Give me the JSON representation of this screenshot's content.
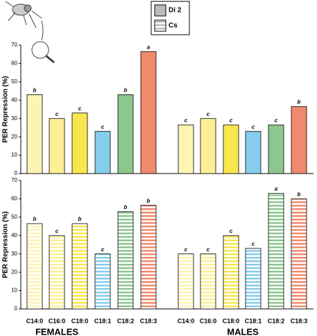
{
  "legend": [
    {
      "name": "Di 2",
      "pattern": "solid"
    },
    {
      "name": "Cs",
      "pattern": "striped"
    }
  ],
  "categories": [
    "C14:0",
    "C16:0",
    "C18:0",
    "C18:1",
    "C18:2",
    "C18:3"
  ],
  "colors": [
    "#fdf3b3",
    "#fdef95",
    "#f8e64f",
    "#86cdec",
    "#8dc68f",
    "#ef8a6d"
  ],
  "groups": [
    "FEMALES",
    "MALES"
  ],
  "chart_data": [
    {
      "type": "bar",
      "pattern": "solid",
      "y_label": "PER Repression (%)",
      "ylim": [
        0,
        70
      ],
      "yticks": [
        0,
        10,
        20,
        30,
        40,
        50,
        60,
        70
      ],
      "series": [
        {
          "values": [
            43,
            30,
            33,
            23,
            43,
            66.5
          ],
          "letters": [
            "b",
            "c",
            "c",
            "c",
            "b",
            "a"
          ]
        },
        {
          "values": [
            26.5,
            30,
            26.5,
            23,
            26.5,
            36.5
          ],
          "letters": [
            "c",
            "c",
            "c",
            "c",
            "c",
            "b"
          ]
        }
      ]
    },
    {
      "type": "bar",
      "pattern": "striped",
      "y_label": "PER Repression (%)",
      "ylim": [
        0,
        70
      ],
      "yticks": [
        0,
        10,
        20,
        30,
        40,
        50,
        60,
        70
      ],
      "series": [
        {
          "values": [
            46.5,
            40,
            46.5,
            30,
            53,
            56.5
          ],
          "letters": [
            "b",
            "c",
            "b",
            "c",
            "b",
            "b"
          ]
        },
        {
          "values": [
            30,
            30,
            40,
            33,
            63,
            60
          ],
          "letters": [
            "c",
            "c",
            "c",
            "c",
            "a",
            "b"
          ]
        }
      ]
    }
  ]
}
